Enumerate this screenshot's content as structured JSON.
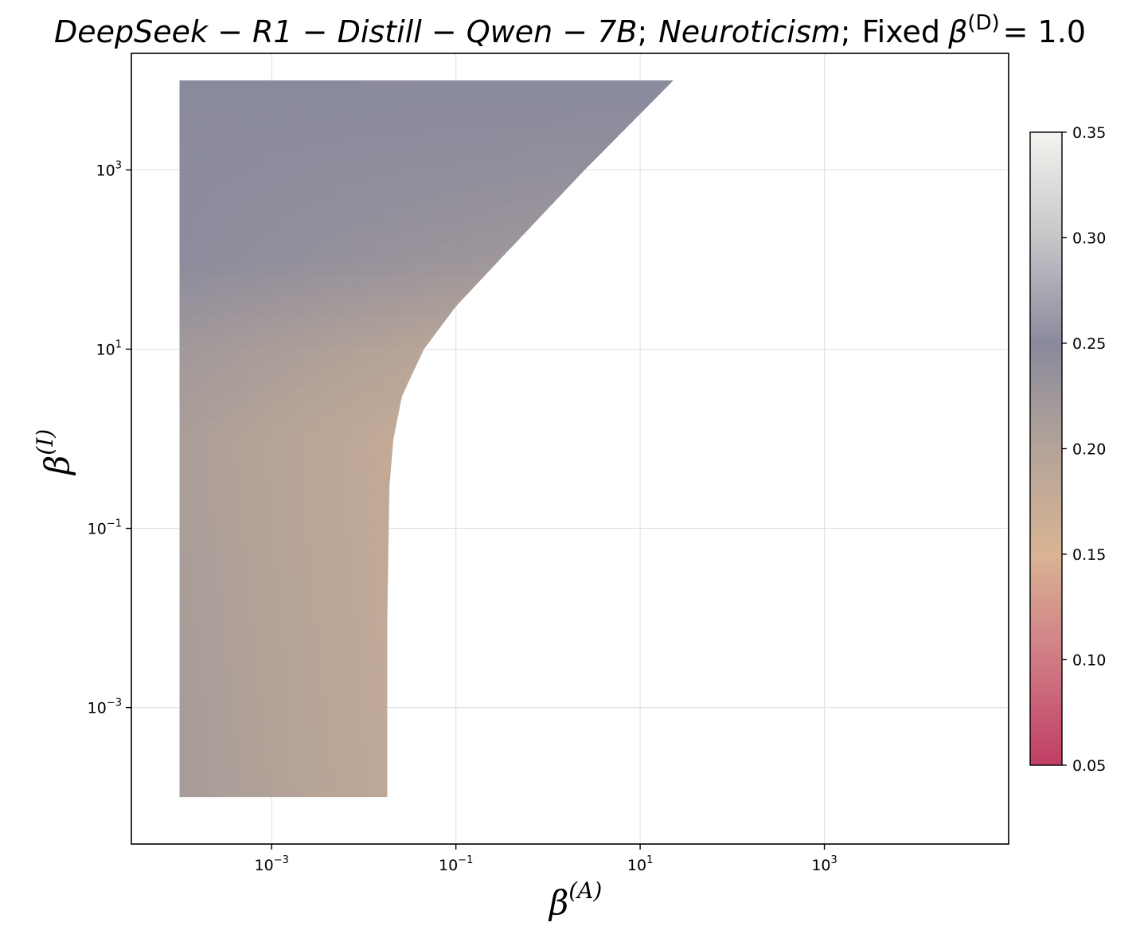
{
  "chart_data": {
    "type": "heatmap",
    "title": {
      "model": "DeepSeek − R1 − Distill − Qwen − 7B",
      "trait": "Neuroticism",
      "separator": ";",
      "fixed_prefix": "Fixed",
      "fixed_symbol": "β",
      "fixed_superscript": "(D)",
      "fixed_value": "= 1.0"
    },
    "xlabel": {
      "symbol": "β",
      "superscript": "(A)"
    },
    "ylabel": {
      "symbol": "β",
      "superscript": "(I)"
    },
    "x_scale": "log",
    "y_scale": "log",
    "xlim": [
      3e-05,
      100000
    ],
    "ylim": [
      3e-05,
      20000
    ],
    "x_ticks": [
      {
        "value": 0.001,
        "base": "10",
        "exp": "−3"
      },
      {
        "value": 0.1,
        "base": "10",
        "exp": "−1"
      },
      {
        "value": 10,
        "base": "10",
        "exp": "1"
      },
      {
        "value": 1000,
        "base": "10",
        "exp": "3"
      }
    ],
    "y_ticks": [
      {
        "value": 0.001,
        "base": "10",
        "exp": "−3"
      },
      {
        "value": 0.1,
        "base": "10",
        "exp": "−1"
      },
      {
        "value": 10,
        "base": "10",
        "exp": "1"
      },
      {
        "value": 1000,
        "base": "10",
        "exp": "3"
      }
    ],
    "grid": true,
    "filled_region": {
      "x_min": 0.0001,
      "y_min": 0.0001,
      "y_max": 10000,
      "right_boundary": [
        {
          "y": 0.0001,
          "x": 0.018
        },
        {
          "y": 0.01,
          "x": 0.018
        },
        {
          "y": 0.3,
          "x": 0.019
        },
        {
          "y": 1,
          "x": 0.021
        },
        {
          "y": 3,
          "x": 0.026
        },
        {
          "y": 10,
          "x": 0.045
        },
        {
          "y": 30,
          "x": 0.1
        },
        {
          "y": 100,
          "x": 0.3
        },
        {
          "y": 1000,
          "x": 2.5
        },
        {
          "y": 10000,
          "x": 23
        }
      ],
      "value_samples": [
        {
          "x": 0.0001,
          "y": 0.0001,
          "value": 0.215
        },
        {
          "x": 0.018,
          "y": 0.0001,
          "value": 0.185
        },
        {
          "x": 0.0001,
          "y": 1,
          "value": 0.21
        },
        {
          "x": 0.021,
          "y": 1,
          "value": 0.18
        },
        {
          "x": 0.0001,
          "y": 10,
          "value": 0.222
        },
        {
          "x": 0.045,
          "y": 10,
          "value": 0.195
        },
        {
          "x": 0.0001,
          "y": 100,
          "value": 0.247
        },
        {
          "x": 0.3,
          "y": 100,
          "value": 0.225
        },
        {
          "x": 0.0001,
          "y": 10000,
          "value": 0.25
        },
        {
          "x": 23,
          "y": 10000,
          "value": 0.252
        }
      ]
    },
    "colorbar": {
      "min": 0.05,
      "max": 0.35,
      "ticks": [
        "0.05",
        "0.10",
        "0.15",
        "0.20",
        "0.25",
        "0.30",
        "0.35"
      ],
      "colors": [
        {
          "value": 0.05,
          "color": "#c03e65"
        },
        {
          "value": 0.1,
          "color": "#d07a84"
        },
        {
          "value": 0.15,
          "color": "#d9b494"
        },
        {
          "value": 0.2,
          "color": "#b3a398"
        },
        {
          "value": 0.25,
          "color": "#8a8a9d"
        },
        {
          "value": 0.3,
          "color": "#c6c6c9"
        },
        {
          "value": 0.35,
          "color": "#f2f4ee"
        }
      ]
    }
  }
}
